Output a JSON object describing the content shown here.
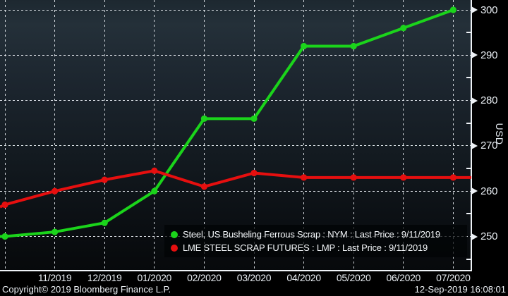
{
  "chart_data": {
    "type": "line",
    "title": "",
    "ylabel": "USD",
    "xlabel": "",
    "x_tick_labels": [
      "",
      "11/2019",
      "12/2019",
      "01/2020",
      "02/2020",
      "03/2020",
      "04/2020",
      "05/2020",
      "06/2020",
      "07/2020"
    ],
    "y_ticks": [
      250,
      260,
      270,
      280,
      290,
      300
    ],
    "y_minor_ticks": [
      245,
      255,
      265,
      275,
      285,
      295
    ],
    "ylim": [
      242.5,
      302.5
    ],
    "grid": "dotted-white",
    "legend_position": "bottom-right-inset",
    "series": [
      {
        "name": "Steel, US Busheling Ferrous Scrap : NYM : Last Price : 9/11/2019",
        "color": "#1bd41b",
        "values": [
          250,
          251,
          253,
          260,
          276,
          276,
          292,
          292,
          296,
          300
        ],
        "left_edge_value": 250,
        "extend_to_right_axis": false
      },
      {
        "name": "LME STEEL SCRAP FUTURES : LMP : Last Price : 9/11/2019",
        "color": "#e60f0f",
        "values": [
          257,
          260,
          262.5,
          264.5,
          261,
          264,
          263,
          263,
          263,
          263
        ],
        "left_edge_value": 256.5,
        "extend_to_right_axis": true
      }
    ]
  },
  "footer": {
    "copyright": "Copyright© 2019 Bloomberg Finance L.P.",
    "timestamp": "12-Sep-2019 16:08:01"
  }
}
